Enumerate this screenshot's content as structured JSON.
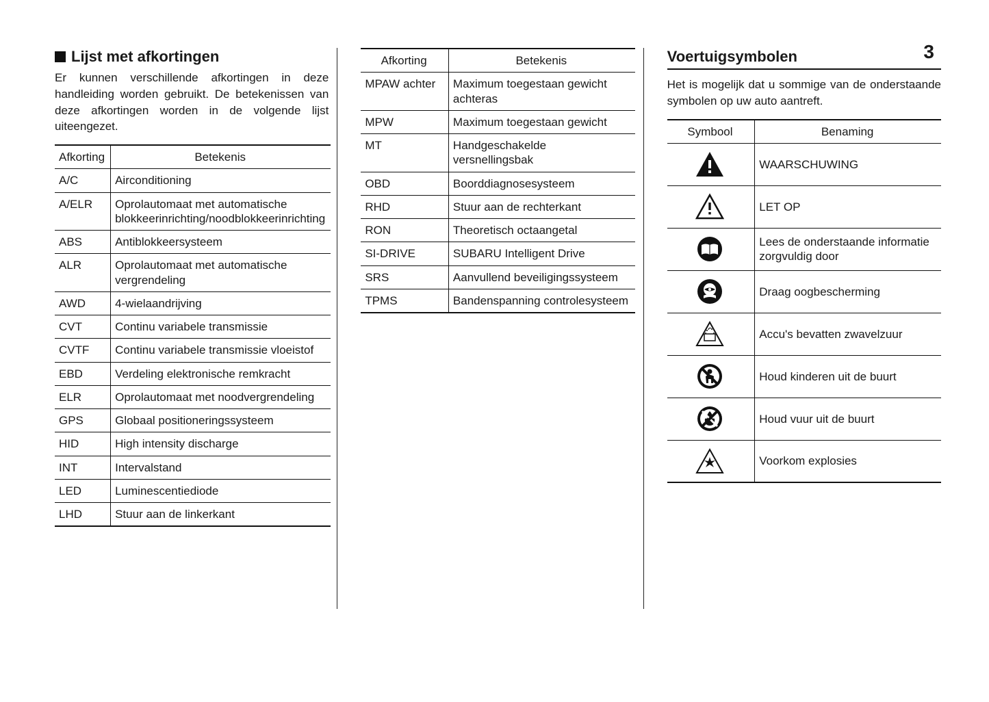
{
  "page_number": "3",
  "col1": {
    "heading": "Lijst met afkortingen",
    "intro": "Er kunnen verschillende afkortingen in deze handleiding worden gebruikt. De betekenissen van deze afkortingen worden in de volgende lijst uiteengezet.",
    "table": {
      "headers": [
        "Afkorting",
        "Betekenis"
      ],
      "rows": [
        [
          "A/C",
          "Airconditioning"
        ],
        [
          "A/ELR",
          "Oprolautomaat met automatische blokkeerinrichting/noodblokkeerinrichting"
        ],
        [
          "ABS",
          "Antiblokkeersysteem"
        ],
        [
          "ALR",
          "Oprolautomaat met automatische vergrendeling"
        ],
        [
          "AWD",
          "4-wielaandrijving"
        ],
        [
          "CVT",
          "Continu variabele transmissie"
        ],
        [
          "CVTF",
          "Continu variabele transmissie vloeistof"
        ],
        [
          "EBD",
          "Verdeling elektronische remkracht"
        ],
        [
          "ELR",
          "Oprolautomaat met noodvergrendeling"
        ],
        [
          "GPS",
          "Globaal positioneringssysteem"
        ],
        [
          "HID",
          "High intensity discharge"
        ],
        [
          "INT",
          "Intervalstand"
        ],
        [
          "LED",
          "Luminescentiediode"
        ],
        [
          "LHD",
          "Stuur aan de linkerkant"
        ]
      ]
    }
  },
  "col2": {
    "table": {
      "headers": [
        "Afkorting",
        "Betekenis"
      ],
      "rows": [
        [
          "MPAW achter",
          "Maximum toegestaan gewicht achteras"
        ],
        [
          "MPW",
          "Maximum toegestaan gewicht"
        ],
        [
          "MT",
          "Handgeschakelde versnellingsbak"
        ],
        [
          "OBD",
          "Boorddiagnosesysteem"
        ],
        [
          "RHD",
          "Stuur aan de rechterkant"
        ],
        [
          "RON",
          "Theoretisch octaangetal"
        ],
        [
          "SI-DRIVE",
          "SUBARU Intelligent Drive"
        ],
        [
          "SRS",
          "Aanvullend beveiligingssysteem"
        ],
        [
          "TPMS",
          "Bandenspanning controlesysteem"
        ]
      ]
    }
  },
  "col3": {
    "heading": "Voertuigsymbolen",
    "intro": "Het is mogelijk dat u sommige van de onderstaande symbolen op uw auto aantreft.",
    "table": {
      "headers": [
        "Symbool",
        "Benaming"
      ],
      "rows": [
        {
          "icon": "warning-filled",
          "label": "WAARSCHUWING"
        },
        {
          "icon": "caution-outline",
          "label": "LET OP"
        },
        {
          "icon": "read-manual",
          "label": "Lees de onderstaande informatie zorgvuldig door"
        },
        {
          "icon": "eye-protection",
          "label": "Draag oogbescherming"
        },
        {
          "icon": "battery-acid",
          "label": "Accu's bevatten zwavelzuur"
        },
        {
          "icon": "no-children",
          "label": "Houd kinderen uit de buurt"
        },
        {
          "icon": "no-fire",
          "label": "Houd vuur uit de buurt"
        },
        {
          "icon": "explosion",
          "label": "Voorkom explosies"
        }
      ]
    }
  },
  "style": {
    "text_color": "#1a1a1a",
    "border_color": "#111111",
    "font_size_body": 17,
    "font_size_heading": 22
  }
}
